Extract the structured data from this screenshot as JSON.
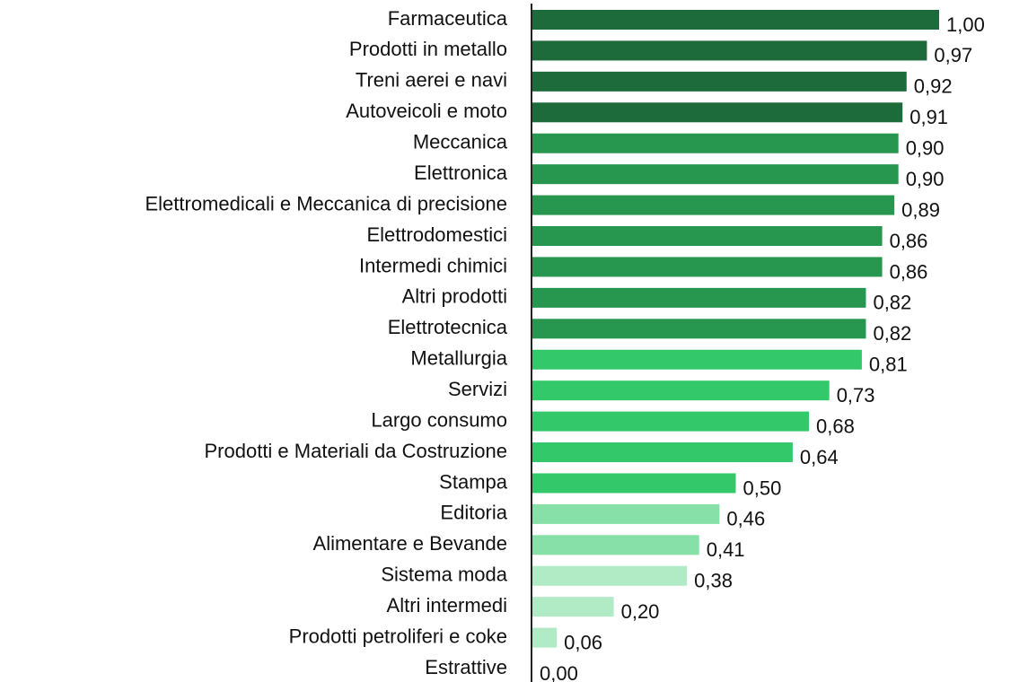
{
  "chart_data": {
    "type": "bar",
    "orientation": "horizontal",
    "categories": [
      "Farmaceutica",
      "Prodotti in metallo",
      "Treni aerei e navi",
      "Autoveicoli e moto",
      "Meccanica",
      "Elettronica",
      "Elettromedicali e Meccanica di precisione",
      "Elettrodomestici",
      "Intermedi chimici",
      "Altri prodotti",
      "Elettrotecnica",
      "Metallurgia",
      "Servizi",
      "Largo consumo",
      "Prodotti e Materiali da Costruzione",
      "Stampa",
      "Editoria",
      "Alimentare e Bevande",
      "Sistema moda",
      "Altri intermedi",
      "Prodotti petroliferi e coke",
      "Estrattive"
    ],
    "values": [
      1.0,
      0.97,
      0.92,
      0.91,
      0.9,
      0.9,
      0.89,
      0.86,
      0.86,
      0.82,
      0.82,
      0.81,
      0.73,
      0.68,
      0.64,
      0.5,
      0.46,
      0.41,
      0.38,
      0.2,
      0.06,
      0.0
    ],
    "value_labels": [
      "1,00",
      "0,97",
      "0,92",
      "0,91",
      "0,90",
      "0,90",
      "0,89",
      "0,86",
      "0,86",
      "0,82",
      "0,82",
      "0,81",
      "0,73",
      "0,68",
      "0,64",
      "0,50",
      "0,46",
      "0,41",
      "0,38",
      "0,20",
      "0,06",
      "0,00"
    ],
    "colors": [
      "#1d6a3a",
      "#1d6a3a",
      "#1d6a3a",
      "#1d6a3a",
      "#27964f",
      "#27964f",
      "#27964f",
      "#27964f",
      "#27964f",
      "#27964f",
      "#27964f",
      "#33c96b",
      "#33c96b",
      "#33c96b",
      "#33c96b",
      "#33c96b",
      "#86e0a8",
      "#86e0a8",
      "#b0ebc6",
      "#b0ebc6",
      "#b0ebc6",
      "#b0ebc6"
    ],
    "xlim": [
      0,
      1
    ]
  }
}
